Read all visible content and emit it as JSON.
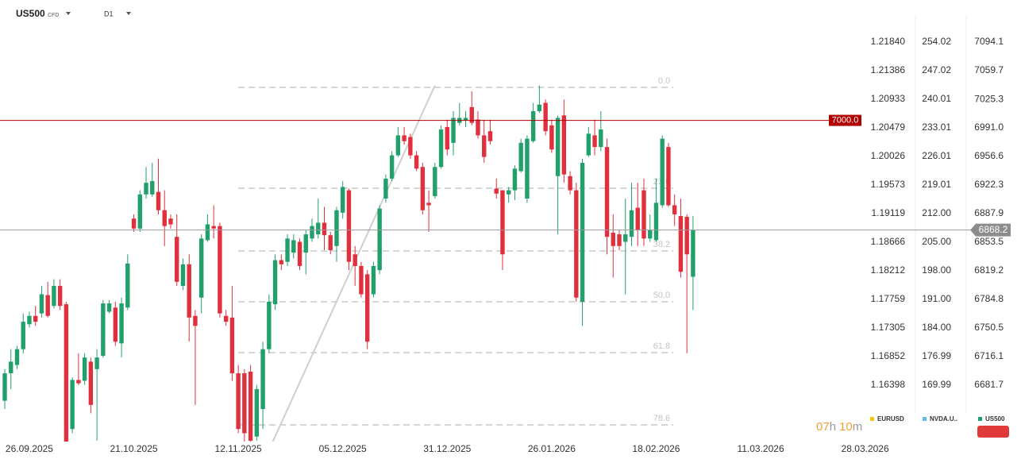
{
  "chart_data": {
    "type": "candlestick",
    "symbol": "US500",
    "instrument_type": "CFD",
    "timeframe": "D1",
    "up_color": "#22a06b",
    "down_color": "#e0303e",
    "xlim": [
      -0.775,
      147.8
    ],
    "xticks": [
      {
        "value": 4,
        "label": "26.09.2025"
      },
      {
        "value": 21,
        "label": "21.10.2025"
      },
      {
        "value": 38,
        "label": "12.11.2025"
      },
      {
        "value": 55,
        "label": "05.12.2025"
      },
      {
        "value": 72,
        "label": "31.12.2025"
      },
      {
        "value": 89,
        "label": "26.01.2026"
      },
      {
        "value": 106,
        "label": "18.02.2026"
      },
      {
        "value": 123,
        "label": "11.03.2026"
      },
      {
        "value": 140,
        "label": "28.03.2026"
      }
    ],
    "ylim": [
      6614.9,
      7144.7
    ],
    "yticks": [
      7094.1,
      7059.7,
      7025.3,
      {
        "value": 6991,
        "label": "6991.0"
      },
      6956.6,
      6922.3,
      6887.9,
      6853.5,
      6819.2,
      6784.8,
      6750.5,
      6716.1,
      6681.7
    ],
    "y2lim": [
      156.38,
      264.33
    ],
    "y2ticks": [
      254.02,
      247.02,
      240.01,
      233.01,
      226.01,
      219.01,
      {
        "value": 212,
        "label": "212.00"
      },
      {
        "value": 205,
        "label": "205.00"
      },
      {
        "value": 198,
        "label": "198.00"
      },
      {
        "value": 191,
        "label": "191.00"
      },
      {
        "value": 184,
        "label": "184.00"
      },
      176.99,
      169.99
    ],
    "y3lim": [
      1.15516,
      1.22508
    ],
    "y3ticks": [
      {
        "value": 1.2184,
        "label": "1.21840"
      },
      1.21386,
      1.20933,
      1.20479,
      1.20026,
      1.19573,
      1.19119,
      1.18666,
      1.18212,
      1.17759,
      1.17305,
      1.16852,
      1.16398
    ],
    "candles": {
      "open": [
        6663,
        6696,
        6706,
        6725,
        6755,
        6765,
        6768,
        6790,
        6777,
        6801,
        6779,
        6629,
        6688,
        6687,
        6710,
        6701,
        6717,
        6770,
        6775,
        6732,
        6775,
        6882,
        6870,
        6911,
        6911,
        6914,
        6892,
        6882,
        6860,
        6801,
        6827,
        6765,
        6787,
        6856,
        6873,
        6873,
        6765,
        6763,
        6696,
        6696,
        6698,
        6620,
        6653,
        6725,
        6779,
        6832,
        6830,
        6841,
        6854,
        6841,
        6858,
        6863,
        6877,
        6862,
        6849,
        6889,
        6916,
        6839,
        6825,
        6815,
        6791,
        6820,
        6906,
        6930,
        6958,
        6982,
        6980,
        6958,
        6944,
        6901,
        6909,
        6944,
        6992,
        6973,
        6997,
        7000,
        7016,
        7001,
        6982,
        6987,
        6918,
        6916,
        6911,
        6916,
        6939,
        6906,
        6975,
        7011,
        7021,
        6994,
        6933,
        7006,
        6933,
        6916,
        6782,
        6958,
        6982,
        6968,
        6968,
        6865,
        6863,
        6854,
        6860,
        6895,
        6916,
        6858,
        6856,
        6898,
        6968,
        6898,
        6885,
        6884,
        6812
      ],
      "high": [
        6701,
        6725,
        6729,
        6768,
        6770,
        6777,
        6801,
        6806,
        6809,
        6809,
        6782,
        6691,
        6720,
        6720,
        6715,
        6725,
        6784,
        6784,
        6782,
        6787,
        6839,
        6887,
        6916,
        6944,
        6949,
        6954,
        6916,
        6887,
        6887,
        6834,
        6839,
        6772,
        6863,
        6887,
        6898,
        6877,
        6772,
        6801,
        6706,
        6701,
        6706,
        6682,
        6734,
        6791,
        6839,
        6839,
        6863,
        6863,
        6858,
        6868,
        6882,
        6906,
        6896,
        6866,
        6896,
        6927,
        6918,
        6849,
        6830,
        6820,
        6830,
        6898,
        6935,
        6963,
        6992,
        6992,
        6984,
        6963,
        6949,
        6916,
        6949,
        6994,
        7001,
        7011,
        7021,
        7011,
        7035,
        7011,
        7001,
        7001,
        6930,
        6916,
        6920,
        6946,
        6978,
        6982,
        7021,
        7042,
        7025,
        7001,
        7006,
        7025,
        6939,
        6925,
        6954,
        6992,
        7001,
        7011,
        6978,
        6887,
        6868,
        6906,
        6925,
        6925,
        6930,
        6887,
        6930,
        6982,
        6973,
        6911,
        6906,
        6887,
        6885
      ],
      "low": [
        6653,
        6677,
        6701,
        6720,
        6751,
        6753,
        6763,
        6763,
        6774,
        6772,
        6610,
        6624,
        6682,
        6682,
        6648,
        6615,
        6715,
        6768,
        6729,
        6715,
        6772,
        6866,
        6866,
        6906,
        6908,
        6887,
        6849,
        6870,
        6801,
        6796,
        6734,
        6658,
        6768,
        6854,
        6858,
        6763,
        6753,
        6687,
        6624,
        6612,
        6610,
        6615,
        6629,
        6720,
        6772,
        6820,
        6825,
        6834,
        6820,
        6815,
        6854,
        6858,
        6844,
        6839,
        6830,
        6882,
        6820,
        6801,
        6787,
        6725,
        6787,
        6815,
        6901,
        6927,
        6956,
        6971,
        6954,
        6939,
        6887,
        6866,
        6906,
        6942,
        6958,
        6958,
        6994,
        6992,
        6994,
        6978,
        6949,
        6971,
        6906,
        6820,
        6901,
        6904,
        6937,
        6901,
        6973,
        7009,
        6982,
        6961,
        6863,
        6925,
        6911,
        6782,
        6753,
        6956,
        6958,
        6963,
        6839,
        6811,
        6844,
        6791,
        6849,
        6849,
        6849,
        6854,
        6854,
        6895,
        6896,
        6873,
        6811,
        6720,
        6772
      ],
      "close": [
        6696,
        6710,
        6725,
        6758,
        6765,
        6758,
        6791,
        6765,
        6801,
        6777,
        6614,
        6688,
        6684,
        6715,
        6658,
        6715,
        6780,
        6780,
        6734,
        6780,
        6828,
        6870,
        6911,
        6925,
        6927,
        6892,
        6873,
        6875,
        6806,
        6827,
        6763,
        6753,
        6858,
        6875,
        6870,
        6768,
        6758,
        6696,
        6629,
        6624,
        6615,
        6677,
        6725,
        6782,
        6832,
        6827,
        6858,
        6856,
        6825,
        6863,
        6873,
        6877,
        6862,
        6844,
        6892,
        6920,
        6830,
        6825,
        6791,
        6734,
        6825,
        6894,
        6930,
        6958,
        6982,
        6975,
        6958,
        6942,
        6892,
        6898,
        6944,
        6989,
        6965,
        7003,
        7003,
        7003,
        6997,
        6982,
        6956,
        6975,
        6912,
        6839,
        6916,
        6942,
        6973,
        6978,
        7011,
        7019,
        6987,
        6965,
        7003,
        6935,
        6916,
        6787,
        6949,
        6984,
        6968,
        6989,
        6860,
        6849,
        6849,
        6863,
        6892,
        6868,
        6858,
        6868,
        6901,
        6978,
        6898,
        6887,
        6818,
        6839,
        6868.2
      ]
    },
    "levels": [
      {
        "value": 7000,
        "label": "7000.0",
        "color": "#b00000"
      }
    ],
    "current_price": 6868.2,
    "fibonacci": {
      "x": [
        38,
        108.8
      ],
      "levels": [
        {
          "value": 7039.7,
          "label": "0.0"
        },
        {
          "value": 6918.5,
          "label": "23.6"
        },
        {
          "value": 6843,
          "label": "38.2"
        },
        {
          "value": 6781.9,
          "label": "50.0"
        },
        {
          "value": 6720.8,
          "label": "61.8"
        },
        {
          "value": 6634,
          "label": "78.6"
        }
      ]
    },
    "trendline": {
      "x": [
        43.5,
        70
      ],
      "y": [
        6612,
        7042
      ]
    },
    "countdown": {
      "hours": "07",
      "hour_unit": "h",
      "minutes": "10",
      "minute_unit": "m"
    },
    "legend": [
      {
        "name": "EURUSD",
        "color": "#f5c518"
      },
      {
        "name": "NVDA.U..",
        "color": "#5bc0eb"
      },
      {
        "name": "US500",
        "color": "#22a06b"
      }
    ]
  }
}
